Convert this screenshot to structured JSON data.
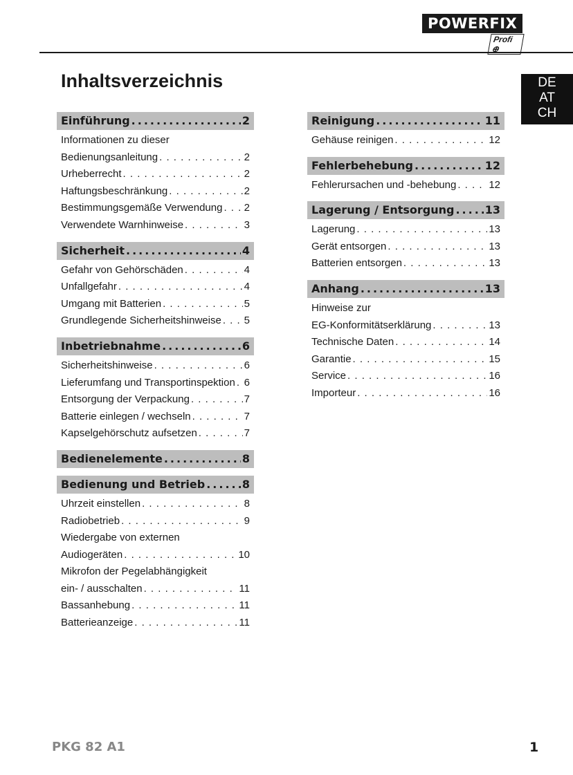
{
  "logo": {
    "brand": "POWERFIX",
    "sub": "Profi ⊕"
  },
  "title": "Inhaltsverzeichnis",
  "lang": [
    "DE",
    "AT",
    "CH"
  ],
  "left": [
    {
      "title": "Einführung",
      "page": "2",
      "items": [
        {
          "pre": "Informationen zu dieser",
          "title": "Bedienungsanleitung",
          "page": "2"
        },
        {
          "title": "Urheberrecht",
          "page": "2"
        },
        {
          "title": "Haftungsbeschränkung",
          "page": "2"
        },
        {
          "title": "Bestimmungsgemäße Verwendung",
          "page": "2"
        },
        {
          "title": "Verwendete Warnhinweise",
          "page": "3"
        }
      ]
    },
    {
      "title": "Sicherheit",
      "page": "4",
      "items": [
        {
          "title": "Gefahr von Gehörschäden",
          "page": "4"
        },
        {
          "title": "Unfallgefahr",
          "page": "4"
        },
        {
          "title": "Umgang mit Batterien",
          "page": "5"
        },
        {
          "title": "Grundlegende Sicherheitshinweise",
          "page": "5"
        }
      ]
    },
    {
      "title": "Inbetriebnahme",
      "page": "6",
      "items": [
        {
          "title": "Sicherheitshinweise",
          "page": "6"
        },
        {
          "title": "Lieferumfang und Transportinspektion",
          "page": "6"
        },
        {
          "title": "Entsorgung der Verpackung",
          "page": "7"
        },
        {
          "title": "Batterie einlegen / wechseln",
          "page": "7"
        },
        {
          "title": "Kapselgehörschutz aufsetzen",
          "page": "7"
        }
      ]
    },
    {
      "title": "Bedienelemente",
      "page": "8",
      "items": []
    },
    {
      "title": "Bedienung und Betrieb",
      "page": "8",
      "items": [
        {
          "title": "Uhrzeit einstellen",
          "page": "8"
        },
        {
          "title": "Radiobetrieb",
          "page": "9"
        },
        {
          "pre": "Wiedergabe von externen",
          "title": "Audiogeräten",
          "page": "10"
        },
        {
          "pre": "Mikrofon der Pegelabhängigkeit",
          "title": "ein- / ausschalten",
          "page": "11"
        },
        {
          "title": "Bassanhebung",
          "page": "11"
        },
        {
          "title": "Batterieanzeige",
          "page": "11"
        }
      ]
    }
  ],
  "right": [
    {
      "title": "Reinigung",
      "page": "11",
      "items": [
        {
          "title": "Gehäuse reinigen",
          "page": "12"
        }
      ]
    },
    {
      "title": "Fehlerbehebung",
      "page": "12",
      "items": [
        {
          "title": "Fehlerursachen und -behebung",
          "page": "12"
        }
      ]
    },
    {
      "title": "Lagerung / Entsorgung",
      "page": "13",
      "items": [
        {
          "title": "Lagerung",
          "page": "13"
        },
        {
          "title": "Gerät entsorgen",
          "page": "13"
        },
        {
          "title": "Batterien entsorgen",
          "page": "13"
        }
      ]
    },
    {
      "title": "Anhang",
      "page": "13",
      "items": [
        {
          "pre": "Hinweise zur",
          "title": "EG-Konformitätserklärung",
          "page": "13"
        },
        {
          "title": "Technische Daten",
          "page": "14"
        },
        {
          "title": "Garantie",
          "page": "15"
        },
        {
          "title": "Service",
          "page": "16"
        },
        {
          "title": "Importeur",
          "page": "16"
        }
      ]
    }
  ],
  "footer": {
    "model": "PKG 82 A1",
    "page": "1"
  }
}
